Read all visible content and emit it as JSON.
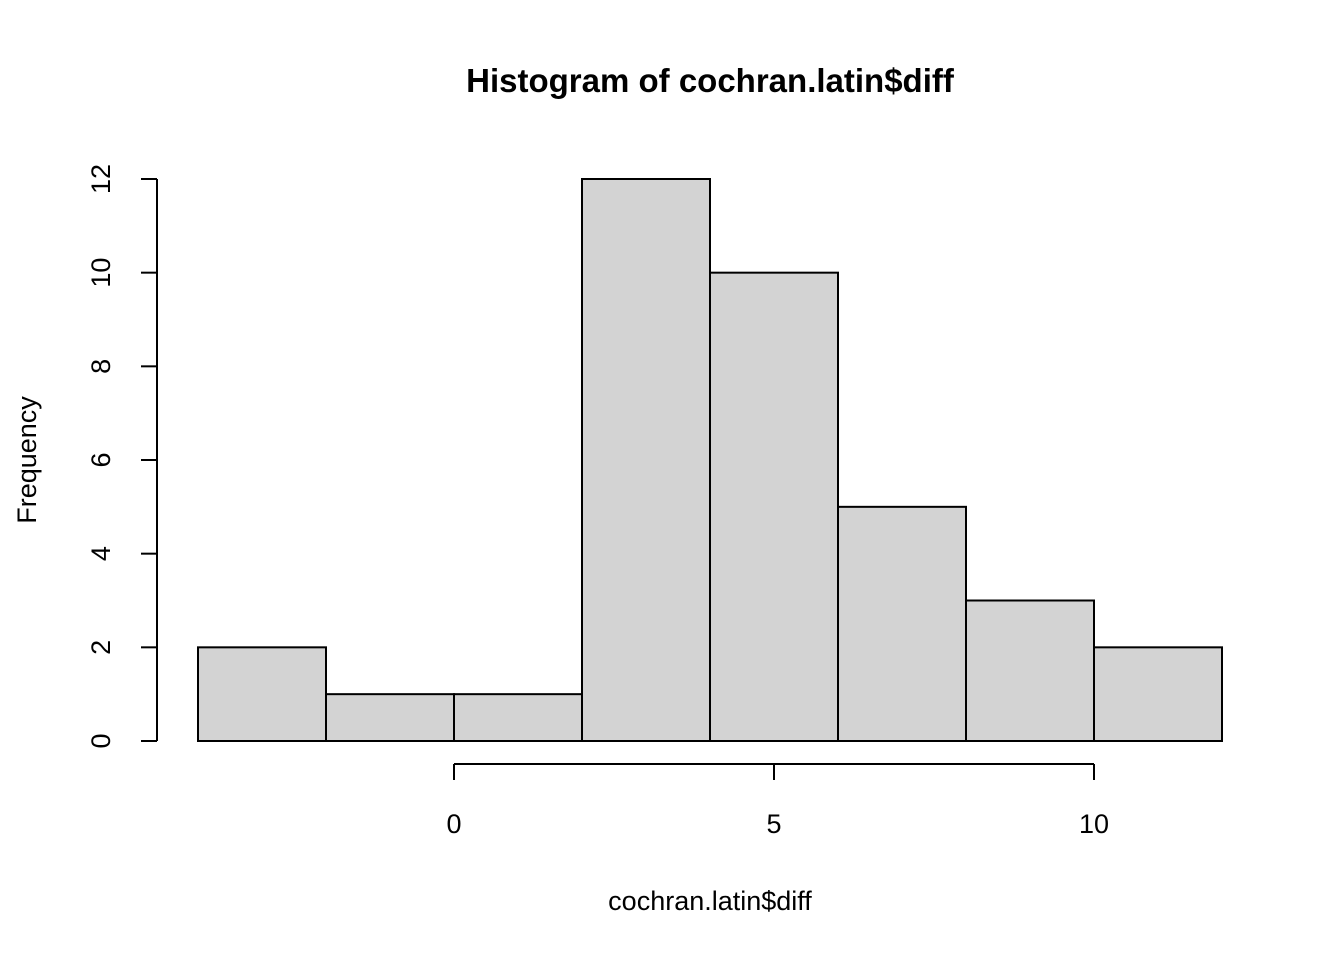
{
  "chart_data": {
    "type": "bar",
    "title": "Histogram of cochran.latin$diff",
    "xlabel": "cochran.latin$diff",
    "ylabel": "Frequency",
    "bins": [
      {
        "start": -4,
        "end": -2,
        "count": 2
      },
      {
        "start": -2,
        "end": 0,
        "count": 1
      },
      {
        "start": 0,
        "end": 2,
        "count": 1
      },
      {
        "start": 2,
        "end": 4,
        "count": 12
      },
      {
        "start": 4,
        "end": 6,
        "count": 10
      },
      {
        "start": 6,
        "end": 8,
        "count": 5
      },
      {
        "start": 8,
        "end": 10,
        "count": 3
      },
      {
        "start": 10,
        "end": 12,
        "count": 2
      }
    ],
    "xlim": [
      -4,
      12
    ],
    "ylim": [
      0,
      12
    ],
    "xticks": [
      "0",
      "5",
      "10"
    ],
    "yticks": [
      "0",
      "2",
      "4",
      "6",
      "8",
      "10",
      "12"
    ],
    "bar_color": "#d3d3d3",
    "grid": false
  }
}
